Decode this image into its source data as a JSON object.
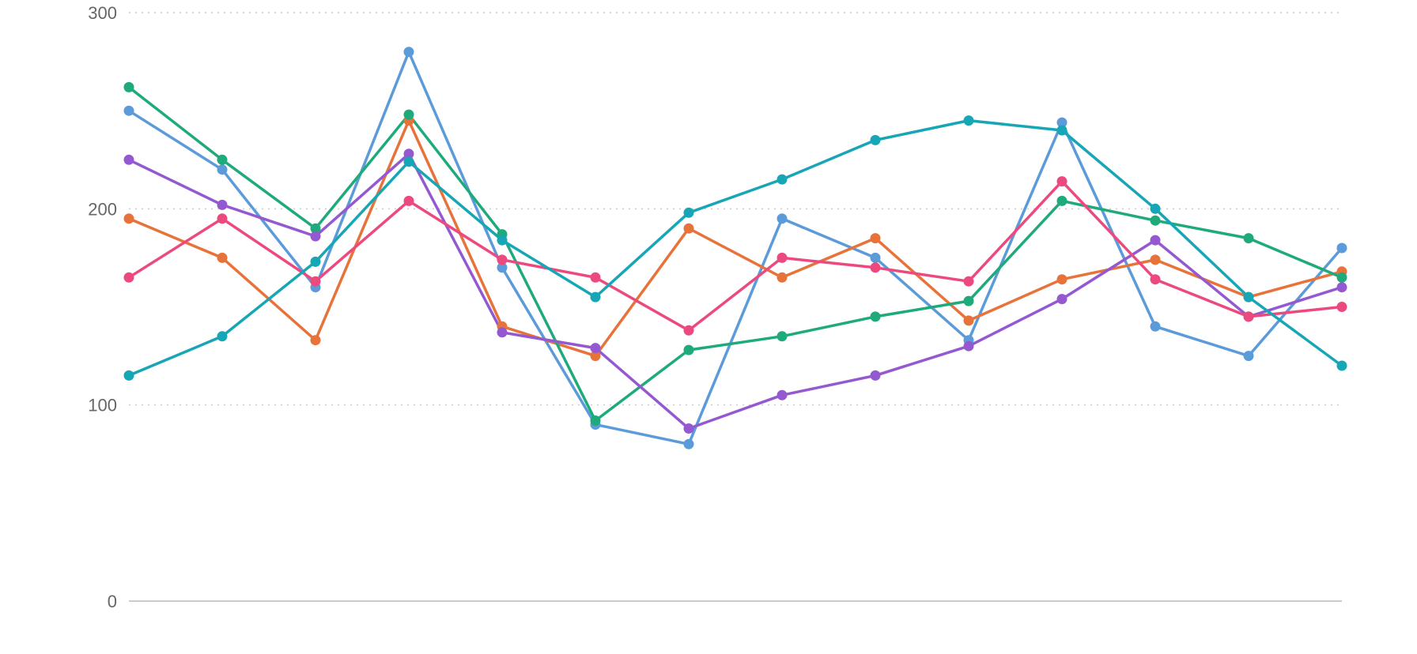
{
  "chart_data": {
    "type": "line",
    "title": "",
    "xlabel": "",
    "ylabel": "",
    "ylim": [
      0,
      300
    ],
    "yticks": [
      0,
      100,
      200,
      300
    ],
    "grid": true,
    "legend": "none",
    "x": [
      1,
      2,
      3,
      4,
      5,
      6,
      7,
      8,
      9,
      10,
      11,
      12,
      13,
      14
    ],
    "series": [
      {
        "color": "#5b9bd9",
        "values": [
          250,
          220,
          160,
          280,
          170,
          90,
          80,
          195,
          175,
          133,
          244,
          140,
          125,
          180
        ]
      },
      {
        "color": "#e8733a",
        "values": [
          195,
          175,
          133,
          245,
          140,
          125,
          190,
          165,
          185,
          143,
          164,
          174,
          155,
          168
        ]
      },
      {
        "color": "#1eaa7a",
        "values": [
          262,
          225,
          190,
          248,
          187,
          92,
          128,
          135,
          145,
          153,
          204,
          194,
          185,
          165
        ]
      },
      {
        "color": "#9459d1",
        "values": [
          225,
          202,
          186,
          228,
          137,
          129,
          88,
          105,
          115,
          130,
          154,
          184,
          145,
          160
        ]
      },
      {
        "color": "#ec4a7f",
        "values": [
          165,
          195,
          163,
          204,
          174,
          165,
          138,
          175,
          170,
          163,
          214,
          164,
          145,
          150
        ]
      },
      {
        "color": "#17a6b6",
        "values": [
          115,
          135,
          173,
          224,
          184,
          155,
          198,
          215,
          235,
          245,
          240,
          200,
          155,
          120
        ]
      }
    ]
  }
}
